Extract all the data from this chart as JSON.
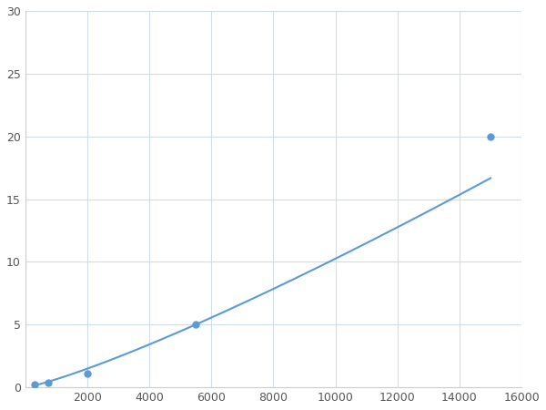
{
  "x": [
    300,
    750,
    2000,
    5500,
    15000
  ],
  "y": [
    0.2,
    0.4,
    1.1,
    5.0,
    20.0
  ],
  "line_color": "#5b9bd5",
  "marker_color": "#5b9bd5",
  "marker_size": 5,
  "line_width": 1.5,
  "xlim": [
    0,
    16000
  ],
  "ylim": [
    0,
    30
  ],
  "xticks": [
    0,
    2000,
    4000,
    6000,
    8000,
    10000,
    12000,
    14000,
    16000
  ],
  "yticks": [
    0,
    5,
    10,
    15,
    20,
    25,
    30
  ],
  "grid_color": "#d0dce8",
  "background_color": "#ffffff",
  "figsize": [
    6.0,
    4.5
  ],
  "dpi": 100
}
